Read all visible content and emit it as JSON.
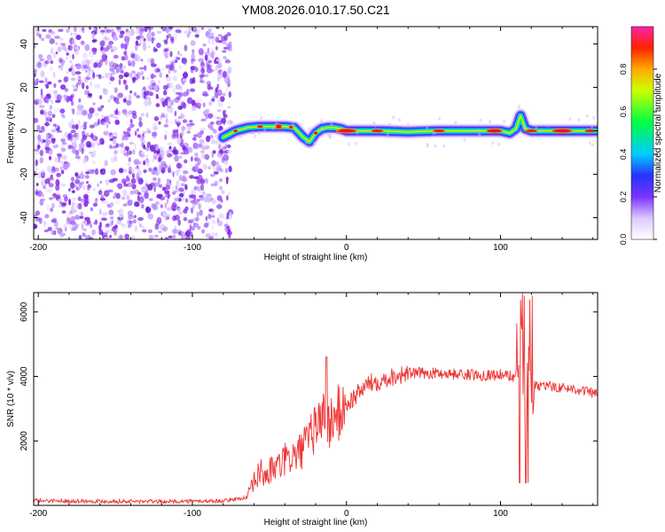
{
  "figure_title": "YM08.2026.010.17.50.C21",
  "chart_data": [
    {
      "type": "heatmap",
      "title": "",
      "xlabel": "Height of straight line (km)",
      "ylabel": "Frequency (Hz)",
      "xlim": [
        -203,
        163
      ],
      "ylim": [
        -50,
        48
      ],
      "x_ticks": [
        -200,
        -100,
        0,
        100
      ],
      "x_tick_labels": [
        "-200",
        "-100",
        "0",
        "100"
      ],
      "y_ticks": [
        -40,
        -20,
        0,
        20,
        40
      ],
      "y_tick_labels": [
        "-40",
        "-20",
        "0",
        "20",
        "40"
      ],
      "noise_region_x": [
        -203,
        -75
      ],
      "signal_region_x": [
        -80,
        163
      ],
      "signal_ridge": {
        "x": [
          -80,
          -72,
          -64,
          -56,
          -48,
          -40,
          -34,
          -28,
          -24,
          -20,
          -16,
          -12,
          -8,
          -4,
          0,
          20,
          40,
          60,
          80,
          100,
          106,
          110,
          113,
          116,
          120,
          140,
          163
        ],
        "y": [
          -3,
          0,
          1.5,
          2,
          2,
          2,
          1.5,
          -3,
          -5,
          -1,
          1,
          1.5,
          1.5,
          1,
          0,
          0,
          -0.5,
          0,
          0,
          0,
          -1,
          1,
          7,
          1,
          0,
          0,
          0
        ]
      },
      "colorbar": {
        "label": "Normalized spectral amplitude",
        "range": [
          0,
          1
        ],
        "ticks": [
          0,
          0.2,
          0.4,
          0.6,
          0.8
        ],
        "tick_labels": [
          "0.0",
          "0.2",
          "0.4",
          "0.6",
          "0.8"
        ],
        "colormap": "rainbow (white -> violet -> blue -> cyan -> green -> yellow -> orange -> red -> magenta)"
      }
    },
    {
      "type": "line",
      "title": "",
      "xlabel": "Height of straight line (km)",
      "ylabel": "SNR (10 * v/v)",
      "xlim": [
        -203,
        163
      ],
      "ylim": [
        0,
        6600
      ],
      "x_ticks": [
        -200,
        -100,
        0,
        100
      ],
      "x_tick_labels": [
        "-200",
        "-100",
        "0",
        "100"
      ],
      "y_ticks": [
        2000,
        4000,
        6000
      ],
      "y_tick_labels": [
        "2000",
        "4000",
        "6000"
      ],
      "series": [
        {
          "name": "SNR",
          "color": "#ee3333",
          "x": [
            -203,
            -160,
            -120,
            -80,
            -64,
            -60,
            -56,
            -52,
            -48,
            -44,
            -40,
            -36,
            -32,
            -28,
            -24,
            -20,
            -16,
            -14,
            -12,
            -8,
            -4,
            0,
            4,
            8,
            12,
            16,
            20,
            30,
            40,
            60,
            80,
            100,
            110,
            112,
            114,
            116,
            118,
            120,
            130,
            140,
            150,
            163
          ],
          "y": [
            150,
            130,
            120,
            140,
            250,
            700,
            1050,
            900,
            1150,
            1200,
            1400,
            1500,
            1550,
            1800,
            2000,
            2500,
            2700,
            3200,
            2500,
            2700,
            2900,
            3100,
            3300,
            3500,
            3700,
            3800,
            3850,
            4000,
            4100,
            4100,
            4050,
            4050,
            4000,
            5200,
            6400,
            800,
            6500,
            3700,
            3700,
            3650,
            3600,
            3450
          ]
        }
      ]
    }
  ]
}
